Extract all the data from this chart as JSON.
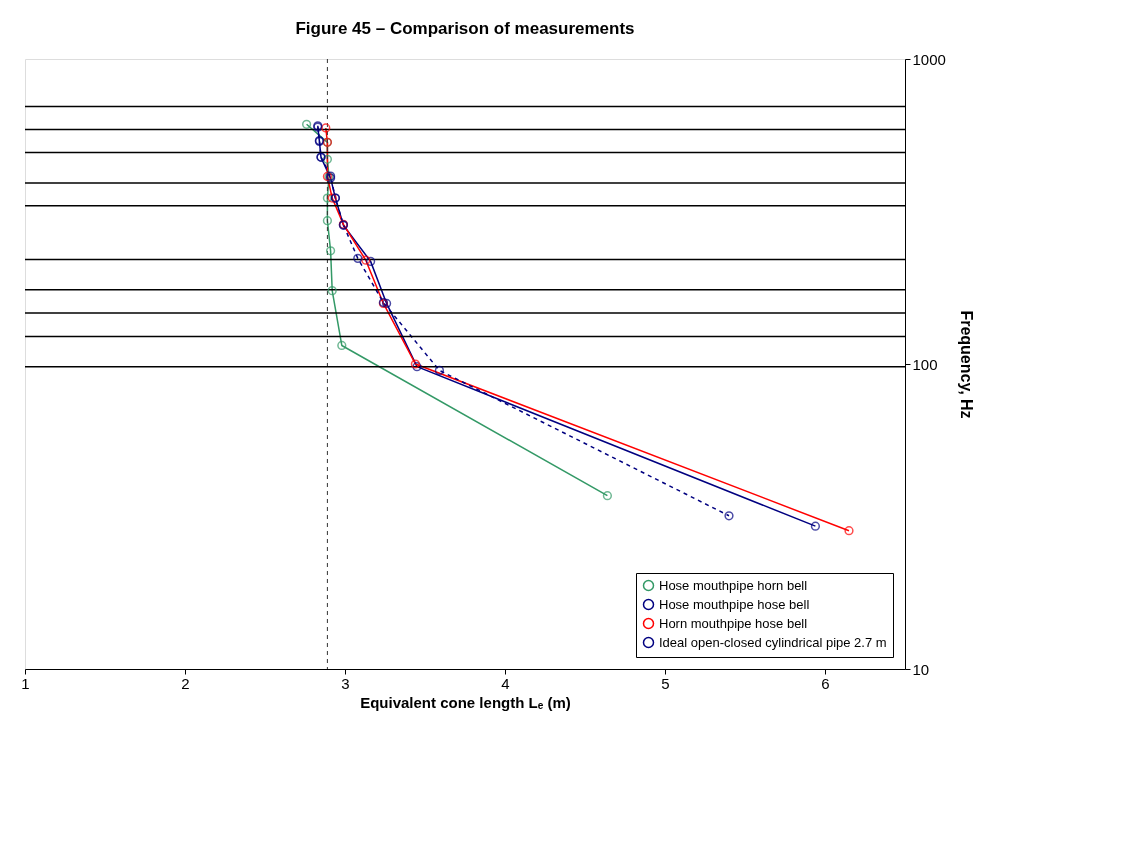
{
  "chart_data": {
    "type": "line",
    "title": "Figure 45 – Comparison of measurements",
    "xlabel": "Equivalent cone length Lₑ (m)",
    "ylabel": "Frequency, Hz",
    "xlim": [
      1,
      6.5
    ],
    "xticks": [
      1,
      2,
      3,
      4,
      5,
      6
    ],
    "ylim": [
      10,
      1000
    ],
    "yticks": [
      10,
      100,
      1000
    ],
    "log": "y",
    "grid": false,
    "legend": "bottom right",
    "marker": "circle",
    "series": [
      {
        "name": "Hose mouthpipe horn bell",
        "color": "#339966",
        "line_style": "solid",
        "x": [
          2.76,
          2.89,
          2.89,
          2.9,
          2.89,
          2.89,
          2.91,
          2.92,
          2.98,
          4.64
        ],
        "values": [
          611,
          533,
          469,
          411,
          350,
          295,
          235,
          174,
          115,
          37
        ]
      },
      {
        "name": "Hose mouthpipe hose bell",
        "color": "#000080",
        "line_style": "solid",
        "x": [
          2.83,
          2.84,
          2.85,
          2.91,
          2.94,
          2.99,
          3.16,
          3.26,
          3.45,
          5.94
        ],
        "values": [
          598,
          537,
          476,
          407,
          350,
          285,
          217,
          158,
          98,
          29.4
        ]
      },
      {
        "name": "Horn mouthpipe hose bell",
        "color": "#ff0000",
        "line_style": "solid",
        "x": [
          2.88,
          2.89,
          2.89,
          2.92,
          2.99,
          3.13,
          3.24,
          3.44,
          6.15
        ],
        "values": [
          594,
          533,
          412,
          350,
          287,
          219,
          158,
          100,
          28.4
        ]
      },
      {
        "name": "Ideal open-closed cylindrical pipe 2.7 m",
        "color": "#000080",
        "line_style": "dashed",
        "x": [
          2.83,
          2.84,
          2.85,
          2.91,
          2.94,
          2.99,
          3.08,
          3.24,
          3.59,
          5.4
        ],
        "values": [
          604,
          540,
          477,
          413,
          350,
          286,
          222,
          159,
          95.3,
          31.8
        ]
      }
    ],
    "ref_lines": [
      {
        "axis": "x",
        "value": 2.89,
        "color": "#333333",
        "line_style": "dashed"
      },
      {
        "axis": "y",
        "value": 98,
        "color": "#000000",
        "line_style": "solid"
      },
      {
        "axis": "y",
        "value": 123,
        "color": "#000000",
        "line_style": "solid"
      },
      {
        "axis": "y",
        "value": 147,
        "color": "#000000",
        "line_style": "solid"
      },
      {
        "axis": "y",
        "value": 175,
        "color": "#000000",
        "line_style": "solid"
      },
      {
        "axis": "y",
        "value": 220,
        "color": "#000000",
        "line_style": "solid"
      },
      {
        "axis": "y",
        "value": 330,
        "color": "#000000",
        "line_style": "solid"
      },
      {
        "axis": "y",
        "value": 392,
        "color": "#000000",
        "line_style": "solid"
      },
      {
        "axis": "y",
        "value": 494,
        "color": "#000000",
        "line_style": "solid"
      },
      {
        "axis": "y",
        "value": 587,
        "color": "#000000",
        "line_style": "solid"
      },
      {
        "axis": "y",
        "value": 698,
        "color": "#000000",
        "line_style": "solid"
      }
    ]
  }
}
